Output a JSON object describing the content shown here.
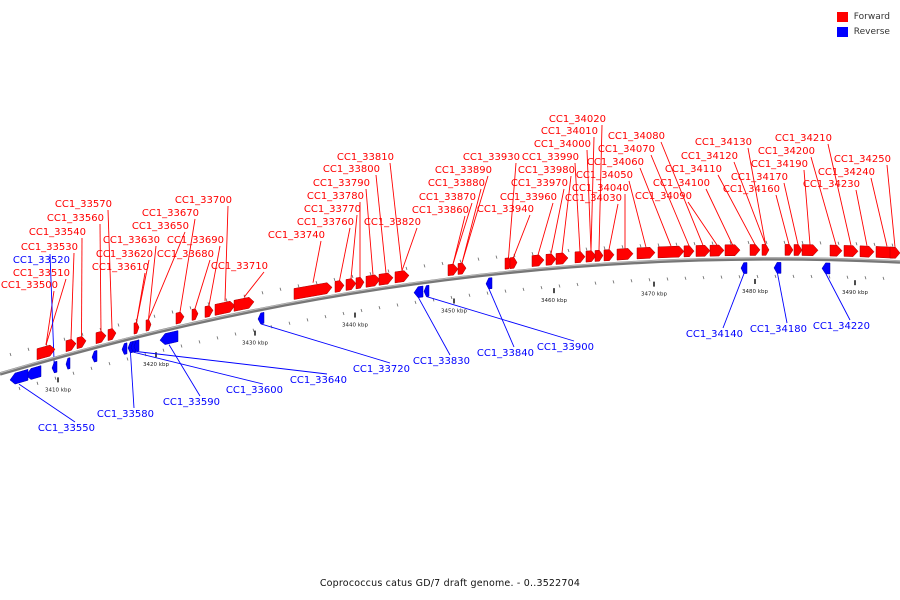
{
  "legend": {
    "forward_label": "Forward",
    "reverse_label": "Reverse",
    "forward_color": "#ff0000",
    "reverse_color": "#0000ff"
  },
  "caption": "Coprococcus catus GD/7 draft genome. - 0..3522704",
  "axis_ticks": [
    "3410 kbp",
    "3420 kbp",
    "3430 kbp",
    "3440 kbp",
    "3450 kbp",
    "3460 kbp",
    "3470 kbp",
    "3480 kbp",
    "3490 kbp"
  ],
  "forward_genes": [
    "CC1_33500",
    "CC1_33510",
    "CC1_33530",
    "CC1_33540",
    "CC1_33560",
    "CC1_33570",
    "CC1_33610",
    "CC1_33620",
    "CC1_33630",
    "CC1_33650",
    "CC1_33670",
    "CC1_33680",
    "CC1_33690",
    "CC1_33700",
    "CC1_33710",
    "CC1_33740",
    "CC1_33760",
    "CC1_33770",
    "CC1_33780",
    "CC1_33790",
    "CC1_33800",
    "CC1_33810",
    "CC1_33820",
    "CC1_33860",
    "CC1_33870",
    "CC1_33880",
    "CC1_33890",
    "CC1_33930",
    "CC1_33940",
    "CC1_33960",
    "CC1_33970",
    "CC1_33980",
    "CC1_33990",
    "CC1_34000",
    "CC1_34010",
    "CC1_34020",
    "CC1_34030",
    "CC1_34040",
    "CC1_34050",
    "CC1_34060",
    "CC1_34070",
    "CC1_34080",
    "CC1_34090",
    "CC1_34100",
    "CC1_34110",
    "CC1_34120",
    "CC1_34130",
    "CC1_34160",
    "CC1_34170",
    "CC1_34190",
    "CC1_34200",
    "CC1_34210",
    "CC1_34230",
    "CC1_34240",
    "CC1_34250"
  ],
  "reverse_genes": [
    "CC1_33520",
    "CC1_33550",
    "CC1_33580",
    "CC1_33590",
    "CC1_33600",
    "CC1_33640",
    "CC1_33720",
    "CC1_33830",
    "CC1_33840",
    "CC1_33900",
    "CC1_34140",
    "CC1_34180",
    "CC1_34220"
  ]
}
